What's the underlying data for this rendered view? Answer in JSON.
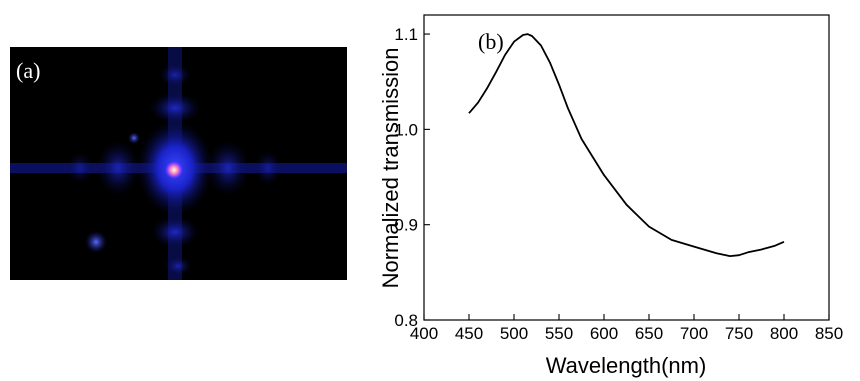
{
  "panel_a": {
    "label": "(a)"
  },
  "chart_data": {
    "type": "line",
    "panel_label": "(b)",
    "title": "",
    "xlabel": "Wavelength(nm)",
    "ylabel": "Normalized transmission",
    "xlim": [
      400,
      850
    ],
    "ylim": [
      0.8,
      1.12
    ],
    "xticks": [
      400,
      450,
      500,
      550,
      600,
      650,
      700,
      750,
      800,
      850
    ],
    "yticks": [
      0.8,
      0.9,
      1.0,
      1.1
    ],
    "ytick_labels": [
      "0.8",
      "0.9",
      "1.0",
      "1.1"
    ],
    "grid": false,
    "series": [
      {
        "x": [
          450,
          460,
          470,
          480,
          490,
          500,
          510,
          515,
          520,
          530,
          540,
          550,
          560,
          575,
          600,
          625,
          650,
          675,
          700,
          725,
          740,
          750,
          760,
          775,
          790,
          800
        ],
        "y": [
          1.017,
          1.028,
          1.043,
          1.06,
          1.078,
          1.092,
          1.099,
          1.1,
          1.098,
          1.088,
          1.07,
          1.047,
          1.022,
          0.99,
          0.952,
          0.921,
          0.898,
          0.884,
          0.877,
          0.87,
          0.867,
          0.868,
          0.871,
          0.874,
          0.878,
          0.882
        ]
      }
    ]
  }
}
